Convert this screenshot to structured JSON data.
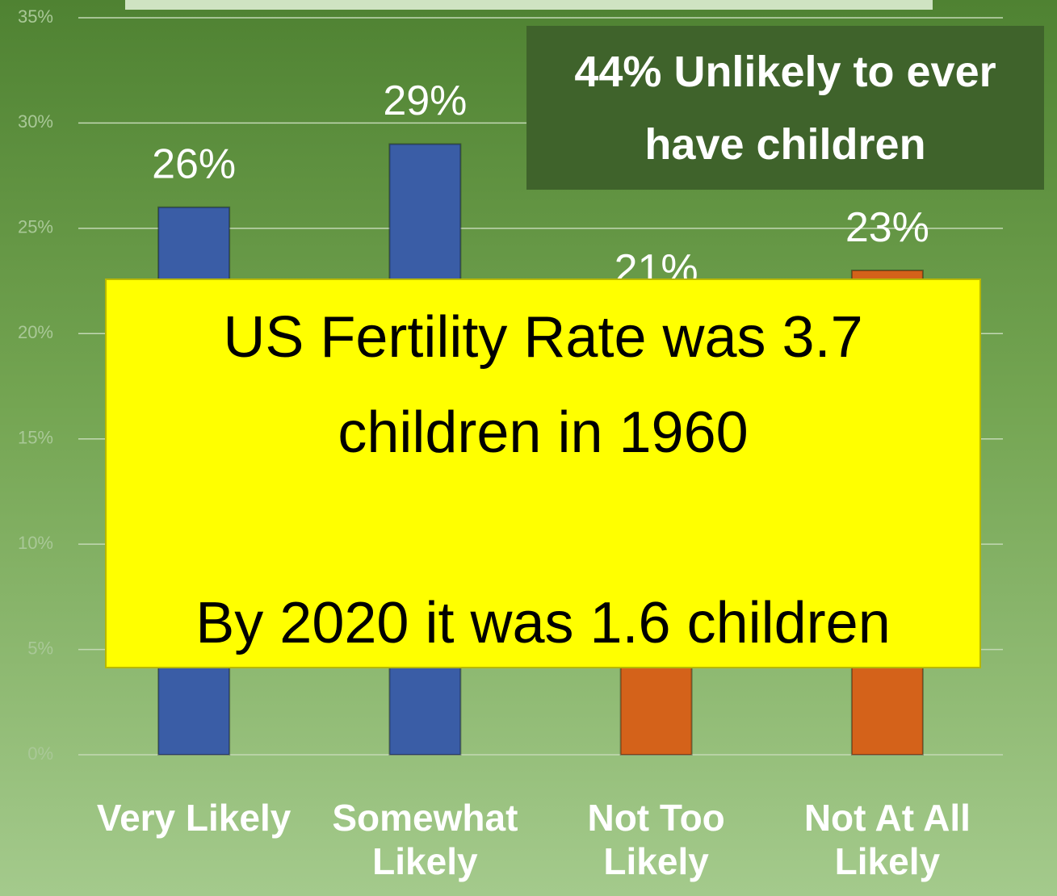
{
  "chart_data": {
    "type": "bar",
    "categories": [
      "Very Likely",
      "Somewhat Likely",
      "Not Too Likely",
      "Not At All Likely"
    ],
    "values": [
      26,
      29,
      21,
      23
    ],
    "value_labels": [
      "26%",
      "29%",
      "21%",
      "23%"
    ],
    "colors": [
      "#3a5da6",
      "#3a5da6",
      "#d4621a",
      "#d4621a"
    ],
    "ylim": [
      0,
      35
    ],
    "yticks": [
      {
        "value": 0,
        "label": "0%"
      },
      {
        "value": 5,
        "label": "5%"
      },
      {
        "value": 10,
        "label": "10%"
      },
      {
        "value": 15,
        "label": "15%"
      },
      {
        "value": 20,
        "label": "20%"
      },
      {
        "value": 25,
        "label": "25%"
      },
      {
        "value": 30,
        "label": "30%"
      },
      {
        "value": 35,
        "label": "35%"
      }
    ],
    "grid": true,
    "annotations": [
      "44% Unlikely to ever have children",
      "US Fertility Rate was 3.7 children in 1960",
      "By 2020 it was 1.6 children"
    ]
  }
}
